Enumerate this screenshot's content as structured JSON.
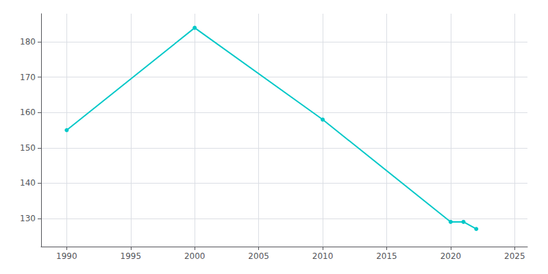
{
  "chart_data": {
    "type": "line",
    "x": [
      1990,
      2000,
      2010,
      2020,
      2021,
      2022
    ],
    "values": [
      155,
      184,
      158,
      129,
      129,
      127
    ],
    "color": "#00C8C8",
    "marker": "circle",
    "xlim": [
      1988,
      2026
    ],
    "ylim": [
      122,
      188
    ],
    "xticks": [
      1990,
      1995,
      2000,
      2005,
      2010,
      2015,
      2020,
      2025
    ],
    "yticks": [
      130,
      140,
      150,
      160,
      170,
      180
    ],
    "grid": true
  }
}
